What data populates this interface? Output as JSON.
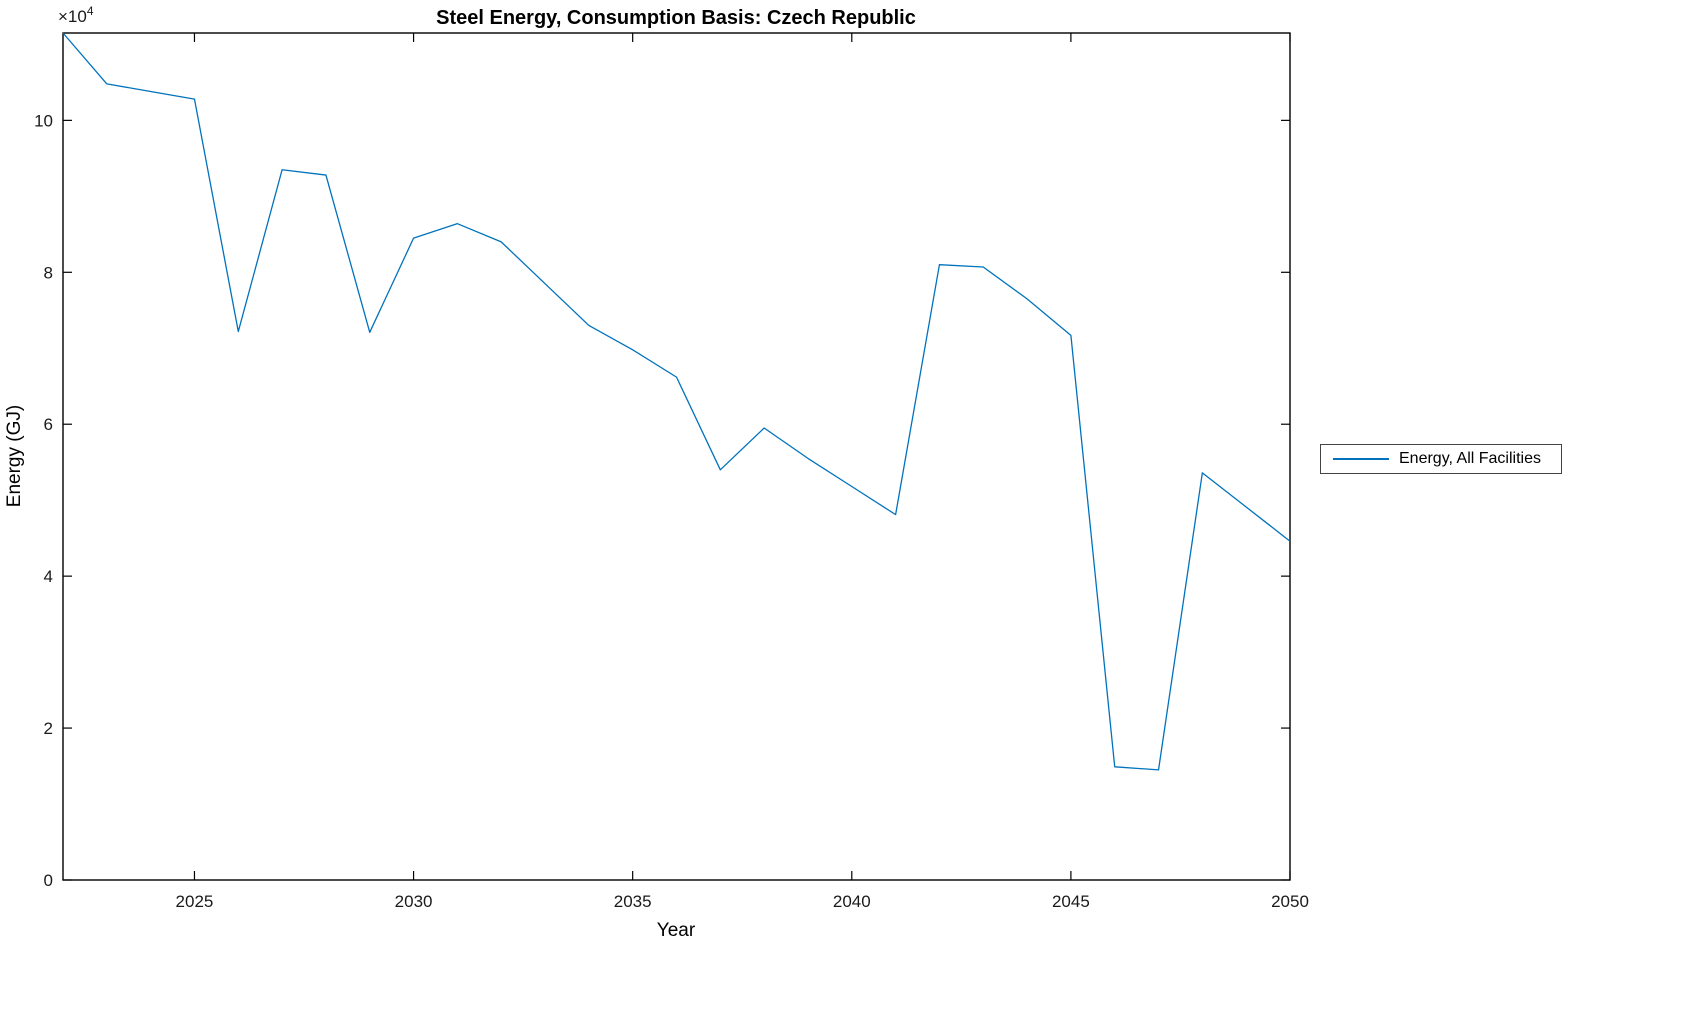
{
  "title": "Steel Energy, Consumption Basis: Czech Republic",
  "xlabel": "Year",
  "ylabel": "Energy (GJ)",
  "y_exponent": {
    "base": "×10",
    "exp": "4"
  },
  "legend": {
    "items": [
      {
        "label": "Energy, All Facilities",
        "color": "#0072BD"
      }
    ]
  },
  "chart_data": {
    "type": "line",
    "title": "Steel Energy, Consumption Basis: Czech Republic",
    "xlabel": "Year",
    "ylabel": "Energy (GJ)",
    "grid": false,
    "legend_position": "right-outside",
    "line_color": "#0072BD",
    "x": [
      2022,
      2023,
      2024,
      2025,
      2026,
      2027,
      2028,
      2029,
      2030,
      2031,
      2032,
      2033,
      2034,
      2035,
      2036,
      2037,
      2038,
      2039,
      2040,
      2041,
      2042,
      2043,
      2044,
      2045,
      2046,
      2047,
      2048,
      2049,
      2050
    ],
    "series": [
      {
        "name": "Energy, All Facilities",
        "color": "#0072BD",
        "values": [
          111500,
          104800,
          103800,
          102800,
          72200,
          93500,
          92800,
          72100,
          84500,
          86400,
          84000,
          78500,
          73000,
          69800,
          66200,
          54000,
          59500,
          55500,
          51800,
          48100,
          81000,
          80700,
          76500,
          71700,
          14900,
          14500,
          53600,
          49100,
          44600
        ]
      }
    ],
    "xlim": [
      2022,
      2050
    ],
    "ylim": [
      0,
      111500
    ],
    "xticks": [
      2025,
      2030,
      2035,
      2040,
      2045,
      2050
    ],
    "xtick_labels": [
      "2025",
      "2030",
      "2035",
      "2040",
      "2045",
      "2050"
    ],
    "yticks": [
      0,
      20000,
      40000,
      60000,
      80000,
      100000
    ],
    "ytick_labels": [
      "0",
      "2",
      "4",
      "6",
      "8",
      "10"
    ]
  }
}
